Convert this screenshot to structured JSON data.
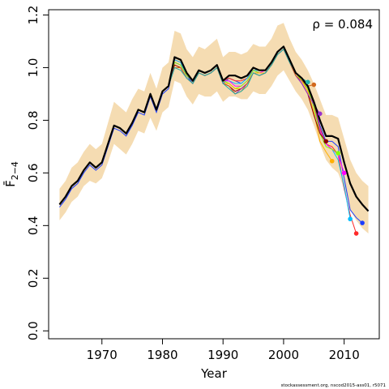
{
  "chart_data": {
    "type": "line",
    "xlabel": "Year",
    "ylabel": "F̄",
    "ylabel_sub": "2−4",
    "annotation": "ρ = 0.084",
    "footer": "stockassessment.org, nscod2015-ass01, r5071",
    "xlim": [
      1961.2,
      2015.8
    ],
    "ylim": [
      -0.03,
      1.22
    ],
    "x_ticks": [
      1970,
      1980,
      1990,
      2000,
      2010
    ],
    "y_ticks": [
      0.0,
      0.2,
      0.4,
      0.6,
      0.8,
      1.0,
      1.2
    ],
    "y_tick_labels": [
      "0.0",
      "0.2",
      "0.4",
      "0.6",
      "0.8",
      "1.0",
      "1.2"
    ],
    "grid": false,
    "colors": {
      "band": "#f5dcb2",
      "main": "#000000",
      "peels": [
        "#1b3cff",
        "#ff2a2a",
        "#00bfff",
        "#ff00ff",
        "#7fff00",
        "#ffb000",
        "#8b0000",
        "#9932cc",
        "#d2691e",
        "#20b2aa"
      ]
    },
    "x": [
      1963,
      1964,
      1965,
      1966,
      1967,
      1968,
      1969,
      1970,
      1971,
      1972,
      1973,
      1974,
      1975,
      1976,
      1977,
      1978,
      1979,
      1980,
      1981,
      1982,
      1983,
      1984,
      1985,
      1986,
      1987,
      1988,
      1989,
      1990,
      1991,
      1992,
      1993,
      1994,
      1995,
      1996,
      1997,
      1998,
      1999,
      2000,
      2001,
      2002,
      2003,
      2004,
      2005,
      2006,
      2007,
      2008,
      2009,
      2010,
      2011,
      2012,
      2013,
      2014
    ],
    "series": [
      {
        "values": [
          0.48,
          0.51,
          0.55,
          0.57,
          0.61,
          0.64,
          0.62,
          0.64,
          0.71,
          0.78,
          0.77,
          0.75,
          0.79,
          0.84,
          0.83,
          0.9,
          0.84,
          0.91,
          0.93,
          1.04,
          1.03,
          0.98,
          0.95,
          0.99,
          0.98,
          0.99,
          1.01,
          0.95,
          0.97,
          0.97,
          0.96,
          0.97,
          1.0,
          0.99,
          0.99,
          1.02,
          1.06,
          1.08,
          1.03,
          0.98,
          0.96,
          0.93,
          0.87,
          0.8,
          0.74,
          0.74,
          0.73,
          0.64,
          0.56,
          0.51,
          0.48,
          0.455
        ],
        "lower": [
          0.42,
          0.45,
          0.49,
          0.51,
          0.55,
          0.57,
          0.56,
          0.58,
          0.64,
          0.71,
          0.69,
          0.67,
          0.71,
          0.76,
          0.75,
          0.81,
          0.76,
          0.83,
          0.85,
          0.95,
          0.94,
          0.89,
          0.86,
          0.9,
          0.89,
          0.89,
          0.91,
          0.87,
          0.89,
          0.89,
          0.88,
          0.88,
          0.91,
          0.9,
          0.9,
          0.93,
          0.97,
          0.99,
          0.95,
          0.91,
          0.88,
          0.84,
          0.78,
          0.71,
          0.65,
          0.62,
          0.6,
          0.54,
          0.46,
          0.42,
          0.39,
          0.37
        ],
        "upper": [
          0.54,
          0.57,
          0.62,
          0.64,
          0.68,
          0.71,
          0.69,
          0.71,
          0.79,
          0.87,
          0.85,
          0.83,
          0.88,
          0.92,
          0.91,
          0.98,
          0.92,
          1.0,
          1.02,
          1.14,
          1.13,
          1.07,
          1.04,
          1.08,
          1.07,
          1.09,
          1.11,
          1.04,
          1.06,
          1.06,
          1.05,
          1.06,
          1.09,
          1.08,
          1.08,
          1.11,
          1.16,
          1.17,
          1.11,
          1.06,
          1.03,
          0.99,
          0.94,
          0.88,
          0.82,
          0.82,
          0.81,
          0.73,
          0.65,
          0.6,
          0.57,
          0.55
        ]
      }
    ],
    "peels": [
      {
        "end_year": 2013,
        "end_value": 0.41,
        "values": [
          0.47,
          0.5,
          0.54,
          0.56,
          0.6,
          0.63,
          0.61,
          0.63,
          0.7,
          0.77,
          0.76,
          0.74,
          0.78,
          0.83,
          0.82,
          0.89,
          0.83,
          0.9,
          0.92,
          1.02,
          1.01,
          0.97,
          0.94,
          0.98,
          0.97,
          0.98,
          1.0,
          0.94,
          0.96,
          0.95,
          0.94,
          0.96,
          0.99,
          0.98,
          0.98,
          1.01,
          1.05,
          1.07,
          1.02,
          0.97,
          0.95,
          0.92,
          0.86,
          0.78,
          0.72,
          0.72,
          0.7,
          0.58,
          0.46,
          0.43,
          0.41
        ]
      },
      {
        "end_year": 2012,
        "end_value": 0.37,
        "values": [
          0.48,
          0.51,
          0.55,
          0.57,
          0.61,
          0.64,
          0.62,
          0.64,
          0.71,
          0.78,
          0.77,
          0.75,
          0.79,
          0.84,
          0.83,
          0.9,
          0.84,
          0.91,
          0.93,
          1.03,
          1.02,
          0.97,
          0.95,
          0.99,
          0.98,
          0.99,
          1.01,
          0.95,
          0.96,
          0.95,
          0.95,
          0.96,
          1.0,
          0.99,
          0.99,
          1.02,
          1.06,
          1.08,
          1.03,
          0.98,
          0.96,
          0.93,
          0.86,
          0.77,
          0.71,
          0.7,
          0.67,
          0.54,
          0.44,
          0.37
        ]
      },
      {
        "end_year": 2011,
        "end_value": 0.425,
        "values": [
          0.48,
          0.51,
          0.55,
          0.57,
          0.61,
          0.64,
          0.62,
          0.64,
          0.71,
          0.78,
          0.77,
          0.75,
          0.79,
          0.84,
          0.83,
          0.9,
          0.84,
          0.91,
          0.93,
          1.03,
          1.02,
          0.97,
          0.95,
          0.99,
          0.98,
          0.99,
          1.01,
          0.95,
          0.95,
          0.94,
          0.94,
          0.96,
          0.99,
          0.99,
          0.99,
          1.02,
          1.06,
          1.08,
          1.03,
          0.98,
          0.96,
          0.92,
          0.85,
          0.76,
          0.71,
          0.69,
          0.65,
          0.55,
          0.425
        ]
      },
      {
        "end_year": 2010,
        "end_value": 0.6,
        "values": [
          0.48,
          0.51,
          0.55,
          0.57,
          0.61,
          0.64,
          0.62,
          0.64,
          0.71,
          0.78,
          0.77,
          0.75,
          0.79,
          0.84,
          0.83,
          0.9,
          0.84,
          0.91,
          0.93,
          1.02,
          1.01,
          0.97,
          0.95,
          0.99,
          0.98,
          0.99,
          1.01,
          0.95,
          0.95,
          0.93,
          0.93,
          0.95,
          0.99,
          0.98,
          0.99,
          1.02,
          1.06,
          1.08,
          1.03,
          0.98,
          0.96,
          0.92,
          0.85,
          0.76,
          0.71,
          0.69,
          0.67,
          0.6
        ]
      },
      {
        "end_year": 2009,
        "end_value": 0.675,
        "values": [
          0.48,
          0.51,
          0.55,
          0.57,
          0.61,
          0.64,
          0.62,
          0.64,
          0.71,
          0.78,
          0.77,
          0.75,
          0.79,
          0.84,
          0.83,
          0.9,
          0.84,
          0.91,
          0.93,
          1.02,
          1.01,
          0.97,
          0.95,
          0.99,
          0.98,
          0.99,
          1.01,
          0.95,
          0.94,
          0.92,
          0.93,
          0.95,
          0.99,
          0.98,
          0.98,
          1.01,
          1.06,
          1.08,
          1.03,
          0.98,
          0.95,
          0.92,
          0.85,
          0.75,
          0.7,
          0.69,
          0.675
        ]
      },
      {
        "end_year": 2008,
        "end_value": 0.645,
        "values": [
          0.48,
          0.51,
          0.55,
          0.57,
          0.61,
          0.64,
          0.62,
          0.64,
          0.71,
          0.78,
          0.77,
          0.75,
          0.79,
          0.84,
          0.83,
          0.9,
          0.84,
          0.91,
          0.93,
          1.01,
          1.0,
          0.96,
          0.94,
          0.98,
          0.97,
          0.98,
          1.0,
          0.94,
          0.94,
          0.92,
          0.92,
          0.94,
          0.98,
          0.98,
          0.98,
          1.01,
          1.05,
          1.07,
          1.02,
          0.97,
          0.95,
          0.91,
          0.83,
          0.72,
          0.68,
          0.645
        ]
      },
      {
        "end_year": 2007,
        "end_value": 0.72,
        "values": [
          0.48,
          0.51,
          0.55,
          0.57,
          0.61,
          0.64,
          0.62,
          0.64,
          0.71,
          0.78,
          0.77,
          0.75,
          0.79,
          0.84,
          0.83,
          0.9,
          0.84,
          0.91,
          0.93,
          1.01,
          1.0,
          0.96,
          0.94,
          0.98,
          0.97,
          0.98,
          1.0,
          0.94,
          0.93,
          0.91,
          0.92,
          0.94,
          0.98,
          0.97,
          0.98,
          1.01,
          1.05,
          1.07,
          1.02,
          0.97,
          0.94,
          0.9,
          0.82,
          0.75,
          0.72
        ]
      },
      {
        "end_year": 2006,
        "end_value": 0.825,
        "values": [
          0.48,
          0.51,
          0.55,
          0.57,
          0.61,
          0.64,
          0.62,
          0.64,
          0.71,
          0.78,
          0.77,
          0.75,
          0.79,
          0.84,
          0.83,
          0.9,
          0.84,
          0.91,
          0.93,
          1.0,
          1.0,
          0.96,
          0.94,
          0.98,
          0.97,
          0.98,
          1.0,
          0.94,
          0.93,
          0.9,
          0.92,
          0.94,
          0.98,
          0.97,
          0.98,
          1.01,
          1.05,
          1.07,
          1.02,
          0.97,
          0.94,
          0.9,
          0.86,
          0.825
        ]
      },
      {
        "end_year": 2005,
        "end_value": 0.935,
        "values": [
          0.48,
          0.51,
          0.55,
          0.57,
          0.61,
          0.64,
          0.62,
          0.64,
          0.71,
          0.78,
          0.77,
          0.75,
          0.79,
          0.84,
          0.83,
          0.9,
          0.84,
          0.91,
          0.93,
          1.0,
          1.0,
          0.96,
          0.94,
          0.98,
          0.97,
          0.98,
          1.0,
          0.94,
          0.93,
          0.9,
          0.91,
          0.94,
          0.98,
          0.97,
          0.98,
          1.01,
          1.05,
          1.07,
          1.02,
          0.97,
          0.95,
          0.93,
          0.935
        ]
      },
      {
        "end_year": 2004,
        "end_value": 0.945,
        "values": [
          0.48,
          0.51,
          0.55,
          0.57,
          0.61,
          0.64,
          0.62,
          0.64,
          0.71,
          0.78,
          0.77,
          0.75,
          0.79,
          0.84,
          0.83,
          0.9,
          0.84,
          0.91,
          0.93,
          1.0,
          0.99,
          0.96,
          0.94,
          0.98,
          0.97,
          0.98,
          1.0,
          0.94,
          0.92,
          0.9,
          0.91,
          0.93,
          0.98,
          0.97,
          0.98,
          1.01,
          1.05,
          1.07,
          1.02,
          0.98,
          0.96,
          0.945
        ]
      }
    ]
  }
}
